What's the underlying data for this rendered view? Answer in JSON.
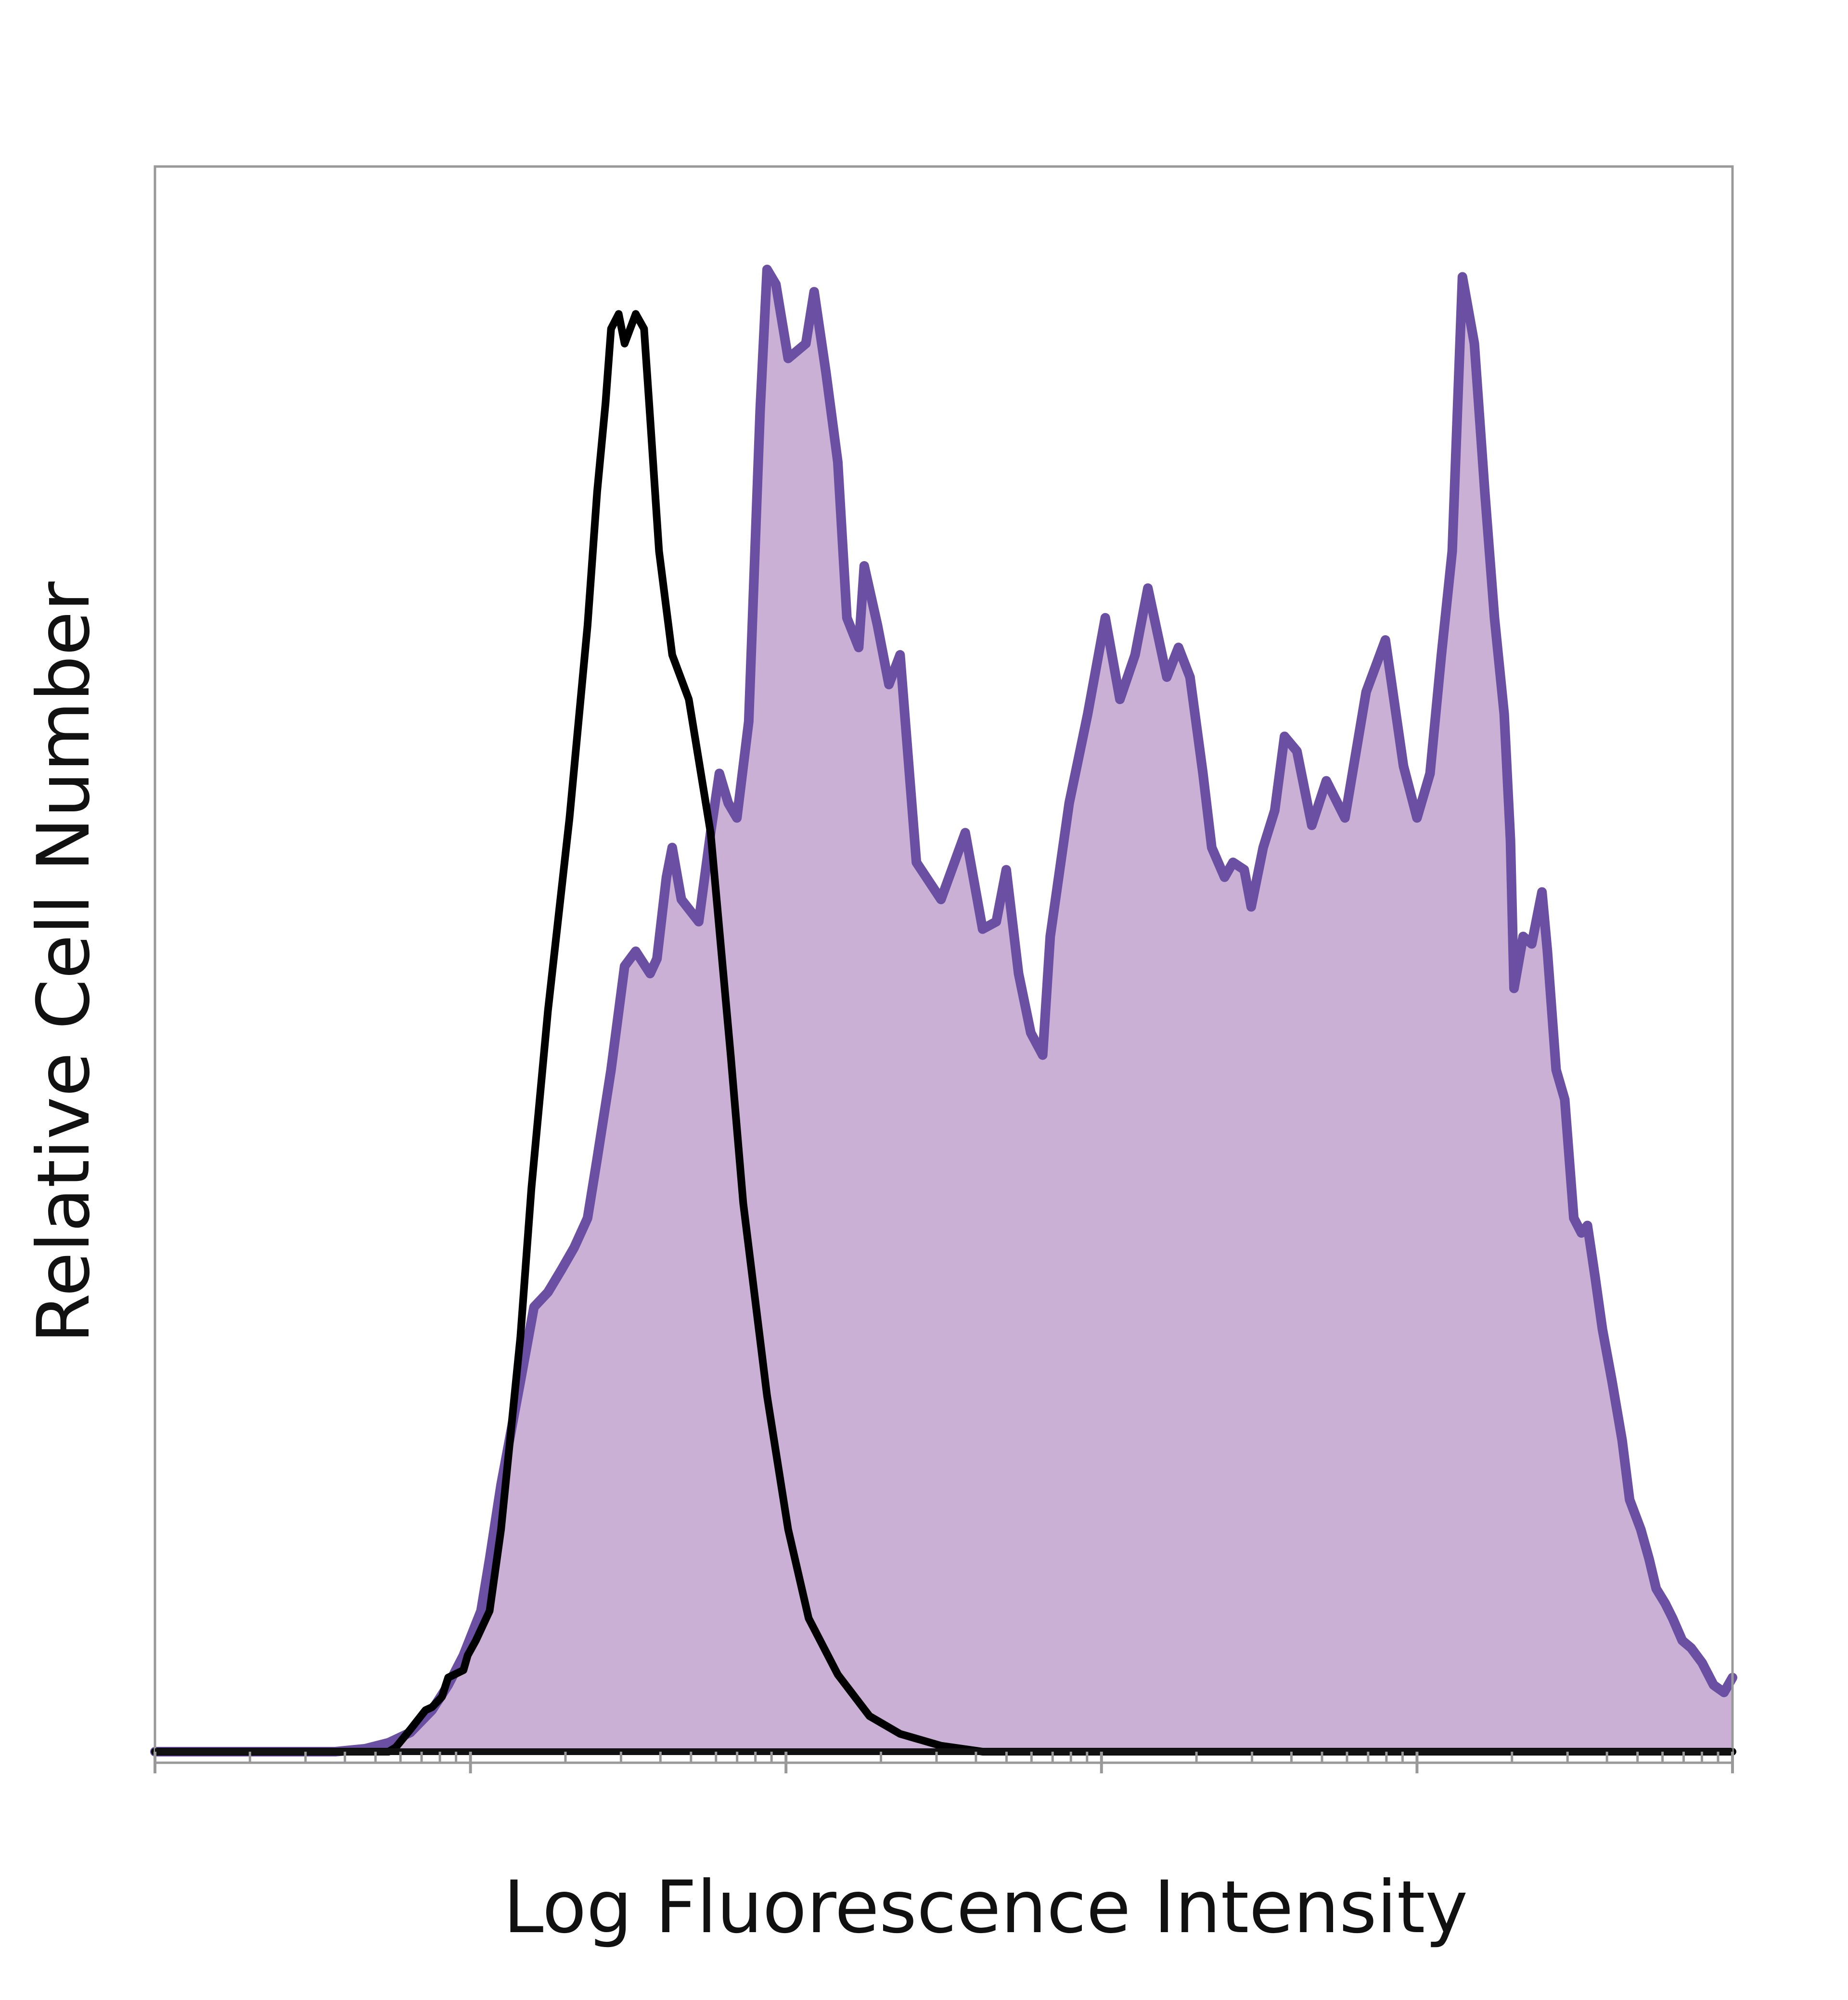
{
  "chart_data": {
    "type": "area",
    "xlabel": "Log Fluorescence Intensity",
    "ylabel": "Relative Cell Number",
    "x_scale": "log",
    "xlim": [
      1,
      100000
    ],
    "ylim": [
      0,
      100
    ],
    "x_major_ticks": [
      1,
      10,
      100,
      1000,
      10000,
      100000
    ],
    "tick_labels_shown": false,
    "grid": false,
    "legend": "none",
    "colors": {
      "stained_fill": "#cbb0d6",
      "stained_line": "#6a4fa3",
      "control_line": "#000000",
      "frame": "#999999",
      "axis_line": "#111111"
    },
    "series": [
      {
        "style": "filled",
        "x": [
          1,
          1.46,
          2.15,
          3.16,
          3.73,
          4.64,
          5.5,
          6.45,
          7.55,
          8.5,
          9.5,
          10.8,
          11.5,
          12.5,
          14.4,
          15.9,
          17.6,
          19.4,
          21.3,
          23.5,
          25.2,
          27.9,
          30.8,
          33.4,
          37.1,
          39.0,
          41.8,
          43.6,
          46.6,
          52.9,
          57.7,
          61.5,
          65.6,
          69.9,
          76.2,
          82.8,
          87.1,
          92.9,
          101.6,
          115.6,
          122.8,
          134,
          146,
          156,
          170,
          177,
          195,
          212,
          230,
          259,
          310,
          370,
          420,
          464,
          499,
          546,
          597,
          651,
          688,
          790,
          904,
          1028,
          1144,
          1278,
          1403,
          1611,
          1754,
          1908,
          2097,
          2236,
          2455,
          2611,
          2834,
          2982,
          3255,
          3541,
          3802,
          4163,
          4640,
          5160,
          5910,
          6900,
          7940,
          9060,
          10000,
          11000,
          11950,
          12930,
          13930,
          15200,
          16400,
          17600,
          18900,
          19780,
          20300,
          21700,
          23100,
          24900,
          25900,
          27600,
          29400,
          31400,
          33200,
          34700,
          36700,
          38700,
          41500,
          44700,
          47200,
          51200,
          54400,
          57300,
          61200,
          64600,
          69300,
          73900,
          80100,
          87100,
          94000,
          100000
        ],
        "y": [
          0,
          0,
          0,
          0,
          0,
          0.2,
          0.6,
          1.3,
          2.8,
          4.5,
          6.5,
          9.5,
          13,
          18,
          25,
          30,
          31,
          32.5,
          34,
          36,
          40,
          46,
          53,
          54,
          52.5,
          53.5,
          59,
          61,
          57.5,
          56,
          62,
          66,
          64,
          63,
          69.5,
          90.5,
          100,
          99,
          94,
          95,
          98.5,
          93,
          87,
          76.5,
          74.5,
          80,
          76,
          72,
          74,
          60,
          57.5,
          62,
          55.5,
          56,
          59.5,
          52.5,
          48.5,
          47,
          55,
          64,
          70,
          76.5,
          71,
          74,
          78.5,
          72.5,
          74.5,
          72.5,
          66,
          61,
          59,
          60,
          59.5,
          57,
          61,
          63.5,
          68.5,
          67.5,
          62.5,
          65.5,
          63,
          71.5,
          75,
          66.5,
          63,
          66,
          74,
          81,
          99.5,
          95,
          85,
          76.5,
          70,
          61.5,
          51.5,
          55,
          54.5,
          58,
          54,
          46,
          44,
          36,
          35,
          35.5,
          32,
          28.5,
          25,
          21,
          17,
          15,
          13,
          11,
          10,
          9,
          7.5,
          7,
          6,
          4.5,
          4,
          5
        ]
      },
      {
        "style": "outline",
        "x": [
          1,
          2.15,
          2.92,
          3.73,
          4.64,
          5.5,
          5.8,
          6.45,
          7.2,
          7.55,
          8.12,
          8.5,
          9.5,
          9.8,
          10.4,
          11.5,
          12.5,
          14.4,
          15.6,
          17.6,
          20.6,
          23.5,
          25.2,
          26.8,
          27.9,
          29.5,
          30.8,
          33.4,
          35.5,
          37.1,
          39.6,
          43.6,
          49.2,
          57.7,
          66.8,
          73.2,
          87.1,
          101.6,
          118,
          146,
          184,
          230,
          310,
          420,
          595,
          1000,
          10000,
          100000
        ],
        "y": [
          0,
          0,
          0,
          0,
          0,
          0,
          0.3,
          1.5,
          2.8,
          3,
          3.7,
          5,
          5.5,
          6.5,
          7.5,
          9.5,
          15,
          28,
          38,
          50,
          63,
          76,
          85,
          91,
          96,
          97,
          95,
          97,
          96,
          90,
          81,
          74,
          71,
          62,
          47,
          37,
          24,
          15,
          9,
          5.2,
          2.4,
          1.2,
          0.4,
          0,
          0,
          0,
          0,
          0
        ]
      }
    ]
  }
}
